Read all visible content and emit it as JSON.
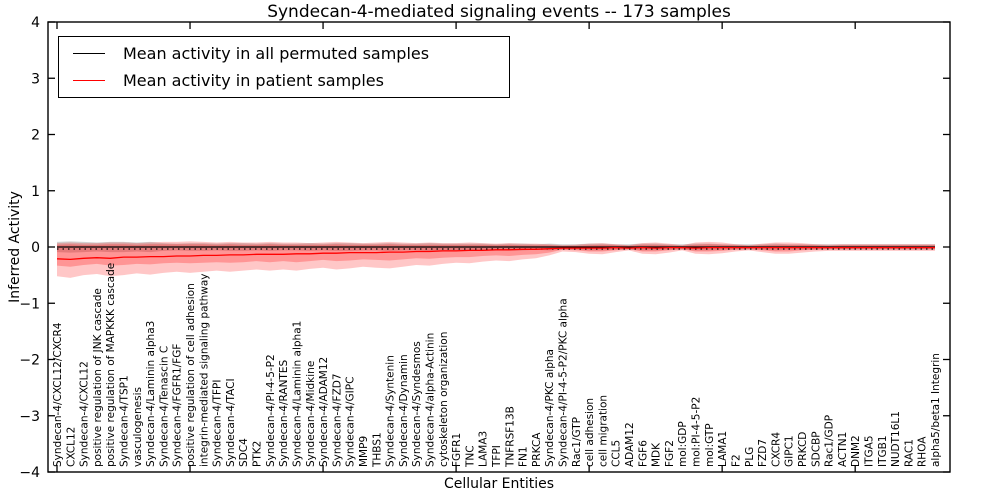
{
  "title": "Syndecan-4-mediated signaling events -- 173 samples",
  "axes": {
    "ylabel": "Inferred Activity",
    "xlabel": "Cellular Entities",
    "ylim": [
      -4,
      4
    ],
    "ytick_labels": [
      "4",
      "3",
      "2",
      "1",
      "0",
      "−1",
      "−2",
      "−3",
      "−4"
    ],
    "ytick_values": [
      4,
      3,
      2,
      1,
      0,
      -1,
      -2,
      -3,
      -4
    ],
    "grid": false
  },
  "legend": {
    "position": "upper-left",
    "items": [
      {
        "label": "Mean activity in all permuted samples",
        "color": "#000000"
      },
      {
        "label": "Mean activity in patient samples",
        "color": "#ff0000"
      }
    ]
  },
  "colors": {
    "patient_line": "#ff0000",
    "permuted_line": "#000000",
    "patient_band": "#ff0000",
    "permuted_band": "#999999",
    "frame": "#000000"
  },
  "chart_data": {
    "type": "line",
    "title": "Syndecan-4-mediated signaling events -- 173 samples",
    "xlabel": "Cellular Entities",
    "ylabel": "Inferred Activity",
    "ylim": [
      -4,
      4
    ],
    "legend_position": "upper left",
    "categories": [
      "Syndecan-4/CXCL12/CXCR4",
      "CXCL12",
      "Syndecan-4/CXCL12",
      "positive regulation of JNK cascade",
      "positive regulation of MAPKKK cascade",
      "Syndecan-4/TSP1",
      "vasculogenesis",
      "Syndecan-4/Laminin alpha3",
      "Syndecan-4/Tenascin C",
      "Syndecan-4/FGFR1/FGF",
      "positive regulation of cell adhesion",
      "integrin-mediated signaling pathway",
      "Syndecan-4/TFPI",
      "Syndecan-4/TACI",
      "SDC4",
      "PTK2",
      "Syndecan-4/PI-4-5-P2",
      "Syndecan-4/RANTES",
      "Syndecan-4/Laminin alpha1",
      "Syndecan-4/Midkine",
      "Syndecan-4/ADAM12",
      "Syndecan-4/FZD7",
      "Syndecan-4/GIPC",
      "MMP9",
      "THBS1",
      "Syndecan-4/Syntenin",
      "Syndecan-4/Dynamin",
      "Syndecan-4/Syndesmos",
      "Syndecan-4/alpha-Actinin",
      "cytoskeleton organization",
      "FGFR1",
      "TNC",
      "LAMA3",
      "TFPI",
      "TNFRSF13B",
      "FN1",
      "PRKCA",
      "Syndecan-4/PKC alpha",
      "Syndecan-4/PI-4-5-P2/PKC alpha",
      "Rac1/GTP",
      "cell adhesion",
      "cell migration",
      "CCL5",
      "ADAM12",
      "FGF6",
      "MDK",
      "FGF2",
      "mol:GDP",
      "mol:PI-4-5-P2",
      "mol:GTP",
      "LAMA1",
      "F2",
      "PLG",
      "FZD7",
      "CXCR4",
      "GIPC1",
      "PRKCD",
      "SDCBP",
      "Rac1/GDP",
      "ACTN1",
      "DNM2",
      "ITGA5",
      "ITGB1",
      "NUDT16L1",
      "RAC1",
      "RHOA",
      "alpha5/beta1 Integrin"
    ],
    "series": [
      {
        "name": "Mean activity in all permuted samples",
        "style": "solid",
        "color": "#000000",
        "values": [
          0,
          0,
          0,
          0,
          0,
          0,
          0,
          0,
          0,
          0,
          0,
          0,
          0,
          0,
          0,
          0,
          0,
          0,
          0,
          0,
          0,
          0,
          0,
          0,
          0,
          0,
          0,
          0,
          0,
          0,
          0,
          0,
          0,
          0,
          0,
          0,
          0,
          0,
          0,
          0,
          0,
          0,
          0,
          0,
          0,
          0,
          0,
          0,
          0,
          0,
          0,
          0,
          0,
          0,
          0,
          0,
          0,
          0,
          0,
          0,
          0,
          0,
          0,
          0,
          0,
          0,
          0
        ]
      },
      {
        "name": "Mean activity in patient samples",
        "style": "solid",
        "color": "#ff0000",
        "values": [
          -0.21,
          -0.22,
          -0.2,
          -0.19,
          -0.2,
          -0.18,
          -0.18,
          -0.17,
          -0.17,
          -0.16,
          -0.16,
          -0.15,
          -0.15,
          -0.14,
          -0.14,
          -0.13,
          -0.13,
          -0.13,
          -0.12,
          -0.12,
          -0.11,
          -0.11,
          -0.1,
          -0.1,
          -0.1,
          -0.09,
          -0.09,
          -0.08,
          -0.08,
          -0.07,
          -0.07,
          -0.06,
          -0.06,
          -0.05,
          -0.05,
          -0.04,
          -0.04,
          -0.03,
          -0.02,
          -0.02,
          -0.02,
          -0.02,
          -0.01,
          -0.02,
          -0.01,
          -0.02,
          -0.01,
          -0.01,
          -0.02,
          -0.01,
          -0.01,
          -0.01,
          -0.01,
          -0.01,
          -0.01,
          -0.01,
          -0.01,
          -0.01,
          -0.01,
          -0.01,
          -0.01,
          -0.01,
          -0.01,
          -0.01,
          -0.01,
          -0.01,
          -0.01
        ]
      }
    ],
    "bands": [
      {
        "name": "patient-band-outer",
        "color": "#ff0000",
        "opacity": 0.22,
        "upper": [
          0.07,
          0.08,
          0.07,
          0.07,
          0.08,
          0.08,
          0.07,
          0.08,
          0.09,
          0.09,
          0.1,
          0.09,
          0.08,
          0.09,
          0.08,
          0.08,
          0.09,
          0.08,
          0.08,
          0.07,
          0.08,
          0.09,
          0.08,
          0.07,
          0.08,
          0.09,
          0.08,
          0.07,
          0.08,
          0.07,
          0.07,
          0.08,
          0.07,
          0.06,
          0.07,
          0.06,
          0.06,
          0.05,
          0.03,
          0.04,
          0.06,
          0.07,
          0.05,
          0.03,
          0.07,
          0.08,
          0.06,
          0.03,
          0.08,
          0.09,
          0.08,
          0.05,
          0.03,
          0.06,
          0.08,
          0.08,
          0.07,
          0.05,
          0.04,
          0.05,
          0.05,
          0.05,
          0.05,
          0.05,
          0.05,
          0.05,
          0.05
        ],
        "lower": [
          -0.52,
          -0.55,
          -0.5,
          -0.48,
          -0.52,
          -0.5,
          -0.47,
          -0.49,
          -0.46,
          -0.44,
          -0.46,
          -0.44,
          -0.42,
          -0.44,
          -0.42,
          -0.4,
          -0.42,
          -0.4,
          -0.42,
          -0.39,
          -0.37,
          -0.4,
          -0.38,
          -0.35,
          -0.37,
          -0.38,
          -0.35,
          -0.32,
          -0.33,
          -0.3,
          -0.28,
          -0.29,
          -0.26,
          -0.24,
          -0.25,
          -0.22,
          -0.2,
          -0.15,
          -0.08,
          -0.09,
          -0.12,
          -0.13,
          -0.09,
          -0.06,
          -0.12,
          -0.13,
          -0.1,
          -0.06,
          -0.12,
          -0.13,
          -0.11,
          -0.08,
          -0.06,
          -0.09,
          -0.12,
          -0.12,
          -0.1,
          -0.08,
          -0.07,
          -0.07,
          -0.07,
          -0.07,
          -0.07,
          -0.07,
          -0.07,
          -0.07,
          -0.07
        ]
      },
      {
        "name": "patient-band-inner",
        "color": "#ff0000",
        "opacity": 0.25,
        "upper": [
          0.04,
          0.05,
          0.04,
          0.04,
          0.05,
          0.05,
          0.04,
          0.05,
          0.05,
          0.05,
          0.05,
          0.05,
          0.04,
          0.05,
          0.04,
          0.04,
          0.05,
          0.04,
          0.04,
          0.04,
          0.04,
          0.05,
          0.04,
          0.04,
          0.04,
          0.05,
          0.04,
          0.04,
          0.04,
          0.04,
          0.04,
          0.04,
          0.04,
          0.03,
          0.04,
          0.03,
          0.03,
          0.03,
          0.02,
          0.02,
          0.03,
          0.04,
          0.03,
          0.02,
          0.04,
          0.04,
          0.03,
          0.02,
          0.04,
          0.05,
          0.04,
          0.03,
          0.02,
          0.03,
          0.04,
          0.04,
          0.04,
          0.03,
          0.02,
          0.03,
          0.03,
          0.03,
          0.03,
          0.03,
          0.03,
          0.03,
          0.03
        ],
        "lower": [
          -0.33,
          -0.35,
          -0.32,
          -0.3,
          -0.33,
          -0.32,
          -0.3,
          -0.31,
          -0.29,
          -0.28,
          -0.29,
          -0.28,
          -0.27,
          -0.28,
          -0.27,
          -0.25,
          -0.27,
          -0.25,
          -0.27,
          -0.25,
          -0.23,
          -0.25,
          -0.24,
          -0.22,
          -0.23,
          -0.24,
          -0.22,
          -0.2,
          -0.21,
          -0.19,
          -0.18,
          -0.18,
          -0.16,
          -0.15,
          -0.16,
          -0.14,
          -0.13,
          -0.1,
          -0.05,
          -0.06,
          -0.08,
          -0.08,
          -0.06,
          -0.04,
          -0.08,
          -0.08,
          -0.06,
          -0.04,
          -0.08,
          -0.08,
          -0.07,
          -0.05,
          -0.04,
          -0.06,
          -0.08,
          -0.08,
          -0.06,
          -0.05,
          -0.04,
          -0.04,
          -0.04,
          -0.04,
          -0.04,
          -0.04,
          -0.04,
          -0.04,
          -0.04
        ]
      },
      {
        "name": "permuted-band",
        "color": "#999999",
        "opacity": 0.45,
        "upper": [
          0.09,
          0.1,
          0.09,
          0.08,
          0.09,
          0.09,
          0.08,
          0.09,
          0.07,
          0.06,
          0.07,
          0.07,
          0.06,
          0.07,
          0.07,
          0.06,
          0.07,
          0.06,
          0.06,
          0.07,
          0.06,
          0.07,
          0.07,
          0.06,
          0.06,
          0.07,
          0.06,
          0.06,
          0.07,
          0.06,
          0.06,
          0.06,
          0.06,
          0.05,
          0.06,
          0.06,
          0.05,
          0.06,
          0.05,
          0.05,
          0.06,
          0.06,
          0.05,
          0.05,
          0.06,
          0.06,
          0.05,
          0.05,
          0.06,
          0.06,
          0.05,
          0.05,
          0.05,
          0.05,
          0.06,
          0.05,
          0.05,
          0.05,
          0.05,
          0.05,
          0.05,
          0.05,
          0.05,
          0.05,
          0.05,
          0.05,
          0.05
        ],
        "lower": [
          -0.09,
          -0.1,
          -0.09,
          -0.08,
          -0.09,
          -0.09,
          -0.08,
          -0.09,
          -0.07,
          -0.06,
          -0.07,
          -0.07,
          -0.06,
          -0.07,
          -0.07,
          -0.06,
          -0.07,
          -0.06,
          -0.06,
          -0.07,
          -0.06,
          -0.07,
          -0.07,
          -0.06,
          -0.06,
          -0.07,
          -0.06,
          -0.06,
          -0.07,
          -0.06,
          -0.06,
          -0.06,
          -0.06,
          -0.05,
          -0.06,
          -0.06,
          -0.05,
          -0.06,
          -0.05,
          -0.05,
          -0.06,
          -0.06,
          -0.05,
          -0.05,
          -0.06,
          -0.06,
          -0.05,
          -0.05,
          -0.06,
          -0.06,
          -0.05,
          -0.05,
          -0.05,
          -0.05,
          -0.06,
          -0.05,
          -0.05,
          -0.05,
          -0.05,
          -0.05,
          -0.05,
          -0.05,
          -0.05,
          -0.05,
          -0.05,
          -0.05,
          -0.05
        ]
      }
    ],
    "zero_reference_line": {
      "style": "dotted",
      "color": "#000000",
      "value": 0
    }
  }
}
